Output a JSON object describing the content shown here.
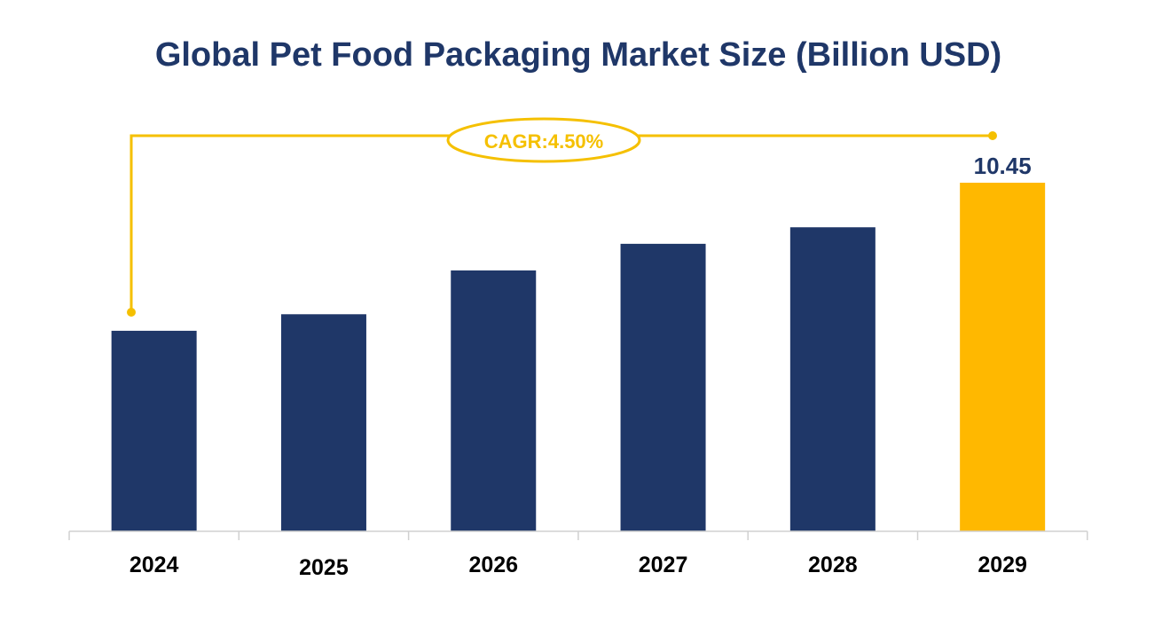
{
  "chart_data": {
    "type": "bar",
    "title": "Global Pet Food Packaging Market Size (Billion USD)",
    "categories": [
      "2024",
      "2025",
      "2026",
      "2027",
      "2028",
      "2029"
    ],
    "values": [
      8.39,
      8.62,
      9.23,
      9.6,
      9.83,
      10.45
    ],
    "data_labels": {
      "2029": "10.45"
    },
    "annotation": "CAGR:4.50%",
    "xlabel": "",
    "ylabel": "",
    "ylim": [
      5.6,
      10.45
    ],
    "grid": false,
    "legend": "none",
    "colors": {
      "bar": "#1f3768",
      "highlight": "#ffb800",
      "title": "#1f3768",
      "cagr": "#f5c000",
      "axis": "#d0d0d0"
    }
  }
}
